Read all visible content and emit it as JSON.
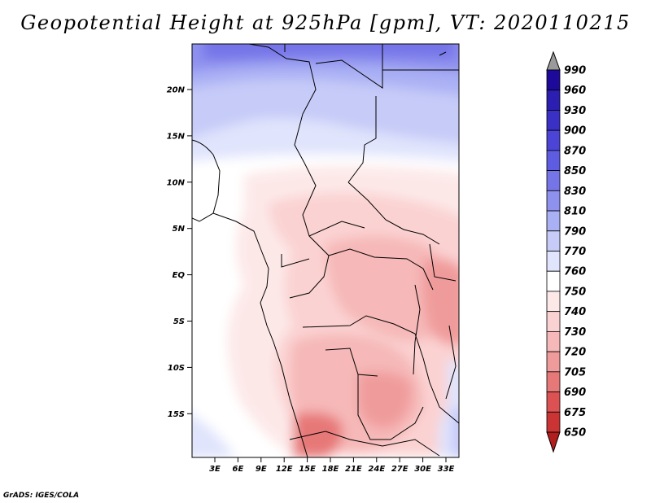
{
  "title": "Geopotential Height at 925hPa [gpm], VT: 2020110215",
  "credit": "GrADS: IGES/COLA",
  "lat_ticks": [
    "20N",
    "15N",
    "10N",
    "5N",
    "EQ",
    "5S",
    "10S",
    "15S"
  ],
  "lon_ticks": [
    "3E",
    "6E",
    "9E",
    "12E",
    "15E",
    "18E",
    "21E",
    "24E",
    "27E",
    "30E",
    "33E"
  ],
  "colorbar": {
    "levels": [
      "990",
      "960",
      "930",
      "900",
      "870",
      "850",
      "830",
      "810",
      "790",
      "770",
      "760",
      "750",
      "740",
      "730",
      "720",
      "705",
      "690",
      "675",
      "650"
    ],
    "colors": [
      "#1e0a9a",
      "#2b1eb0",
      "#3a30c6",
      "#4b44d6",
      "#5e5ce0",
      "#7675e8",
      "#8f91ee",
      "#aab0f4",
      "#c6cbf8",
      "#e0e4fc",
      "#ffffff",
      "#fde8e8",
      "#fbd2d2",
      "#f6b8b8",
      "#f09b9b",
      "#e77878",
      "#dc5252",
      "#cb3434",
      "#b21d1d"
    ]
  }
}
